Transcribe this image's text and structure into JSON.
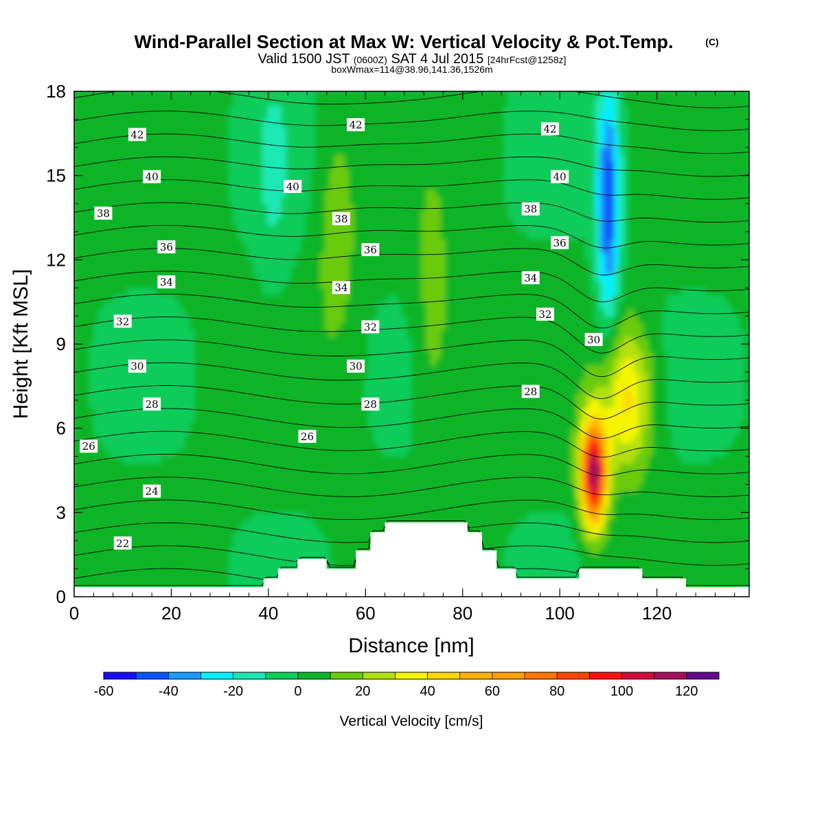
{
  "title": {
    "main": "Wind-Parallel Section at Max W: Vertical Velocity & Pot.Temp.",
    "copyright": "(C)",
    "valid_a": "Valid 1500 JST",
    "valid_zulu": "(0600Z)",
    "valid_b": "SAT 4 Jul 2015",
    "forecast": "[24hrFcst@1258z]",
    "boxwmax": "boxWmax=114@38.96,141.36,1526m"
  },
  "chart_data": {
    "type": "heatmap",
    "xlabel": "Distance [nm]",
    "ylabel": "Height [Kft MSL]",
    "xlim": [
      0,
      139
    ],
    "ylim": [
      0,
      18
    ],
    "x_ticks": [
      "0",
      "20",
      "40",
      "60",
      "80",
      "100",
      "120"
    ],
    "y_ticks": [
      "0",
      "3",
      "6",
      "9",
      "12",
      "15",
      "18"
    ],
    "colorbar": {
      "label": "Vertical Velocity [cm/s]",
      "levels": [
        -60,
        -50,
        -40,
        -30,
        -20,
        -10,
        0,
        10,
        20,
        30,
        40,
        50,
        60,
        70,
        80,
        90,
        100,
        110,
        120,
        130
      ],
      "tick_labels": [
        "-60",
        "-40",
        "-20",
        "0",
        "20",
        "40",
        "60",
        "80",
        "100",
        "120"
      ],
      "colors": [
        "#1a0dff",
        "#0a55ff",
        "#1a9cff",
        "#00f0ff",
        "#1ae8b4",
        "#0fcc5a",
        "#0db528",
        "#6acb10",
        "#b3e00f",
        "#f5f500",
        "#ffd700",
        "#ffb400",
        "#ffa000",
        "#ff7800",
        "#ff4600",
        "#ff0f0f",
        "#d20a3c",
        "#a5105a",
        "#640a8c"
      ]
    },
    "terrain_top_kft": [
      [
        0,
        0.35
      ],
      [
        39,
        0.35
      ],
      [
        39,
        0.65
      ],
      [
        42,
        0.65
      ],
      [
        42,
        1.0
      ],
      [
        46,
        1.0
      ],
      [
        46,
        1.35
      ],
      [
        52,
        1.35
      ],
      [
        52,
        1.0
      ],
      [
        58,
        1.0
      ],
      [
        58,
        1.65
      ],
      [
        61,
        1.65
      ],
      [
        61,
        2.3
      ],
      [
        64,
        2.3
      ],
      [
        64,
        2.65
      ],
      [
        81,
        2.65
      ],
      [
        81,
        2.3
      ],
      [
        84,
        2.3
      ],
      [
        84,
        1.65
      ],
      [
        87,
        1.65
      ],
      [
        87,
        1.0
      ],
      [
        91,
        1.0
      ],
      [
        91,
        0.65
      ],
      [
        104,
        0.65
      ],
      [
        104,
        1.0
      ],
      [
        117,
        1.0
      ],
      [
        117,
        0.65
      ],
      [
        126,
        0.65
      ],
      [
        126,
        0.35
      ],
      [
        139,
        0.35
      ]
    ],
    "vertical_velocity_features": [
      {
        "feature": "updraft core",
        "x_nm": 107,
        "z_kft": 4.4,
        "w_cms": 114
      },
      {
        "feature": "updraft shoulder",
        "x_nm": 114,
        "z_kft": 7,
        "w_cms": 40
      },
      {
        "feature": "downdraft",
        "x_nm": 110,
        "z_kft": 14,
        "w_cms": -50
      },
      {
        "feature": "weak updraft band",
        "x_nm": 54,
        "z_kft": 13,
        "w_cms": 15
      },
      {
        "feature": "weak updraft band",
        "x_nm": 74,
        "z_kft": 9.5,
        "w_cms": 15
      },
      {
        "feature": "weak downdraft band",
        "x_nm": 41,
        "z_kft": 15,
        "w_cms": -10
      }
    ],
    "theta_contours_degC": {
      "interval": 1,
      "labeled": [
        {
          "value": 22,
          "labels": [
            [
              10,
              1.9
            ]
          ]
        },
        {
          "value": 24,
          "labels": [
            [
              16,
              3.75
            ]
          ]
        },
        {
          "value": 26,
          "labels": [
            [
              3,
              5.35
            ],
            [
              48,
              5.7
            ]
          ]
        },
        {
          "value": 28,
          "labels": [
            [
              16,
              6.85
            ],
            [
              61,
              6.85
            ],
            [
              94,
              7.3
            ]
          ]
        },
        {
          "value": 30,
          "labels": [
            [
              13,
              8.2
            ],
            [
              58,
              8.2
            ],
            [
              107,
              9.15
            ]
          ]
        },
        {
          "value": 32,
          "labels": [
            [
              10,
              9.8
            ],
            [
              61,
              9.6
            ],
            [
              97,
              10.05
            ]
          ]
        },
        {
          "value": 34,
          "labels": [
            [
              19,
              11.2
            ],
            [
              55,
              11.0
            ],
            [
              94,
              11.35
            ]
          ]
        },
        {
          "value": 36,
          "labels": [
            [
              19,
              12.45
            ],
            [
              61,
              12.35
            ],
            [
              100,
              12.6
            ]
          ]
        },
        {
          "value": 38,
          "labels": [
            [
              6,
              13.65
            ],
            [
              55,
              13.45
            ],
            [
              94,
              13.8
            ]
          ]
        },
        {
          "value": 40,
          "labels": [
            [
              16,
              14.95
            ],
            [
              45,
              14.6
            ],
            [
              100,
              14.95
            ]
          ]
        },
        {
          "value": 42,
          "labels": [
            [
              13,
              16.45
            ],
            [
              58,
              16.8
            ],
            [
              98,
              16.65
            ]
          ]
        }
      ],
      "label_texts": [
        "22",
        "24",
        "26",
        "28",
        "30",
        "32",
        "34",
        "36",
        "38",
        "40",
        "42"
      ]
    }
  }
}
